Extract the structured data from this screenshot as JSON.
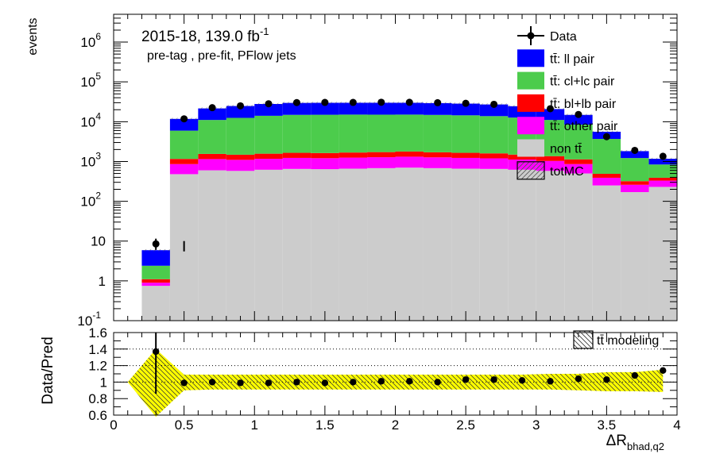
{
  "chart_data": [
    {
      "type": "bar",
      "stacked": true,
      "log_y": true,
      "title": "2015-18, 139.0 fb",
      "title_sup": "-1",
      "subtitle": "pre-tag ,  pre-fit, PFlow jets",
      "ylabel": "events",
      "xlabel": "",
      "xlim": [
        0,
        4
      ],
      "ylim": [
        0.1,
        5000000
      ],
      "y_ticks": [
        {
          "v": 0.1,
          "base": "10",
          "sup": "-1"
        },
        {
          "v": 1,
          "base": "1",
          "sup": ""
        },
        {
          "v": 10,
          "base": "10",
          "sup": ""
        },
        {
          "v": 100,
          "base": "10",
          "sup": "2"
        },
        {
          "v": 1000,
          "base": "10",
          "sup": "3"
        },
        {
          "v": 10000,
          "base": "10",
          "sup": "4"
        },
        {
          "v": 100000,
          "base": "10",
          "sup": "5"
        },
        {
          "v": 1000000,
          "base": "10",
          "sup": "6"
        }
      ],
      "bin_edges": [
        0.2,
        0.4,
        0.6,
        0.8,
        1.0,
        1.2,
        1.4,
        1.6,
        1.8,
        2.0,
        2.2,
        2.4,
        2.6,
        2.8,
        3.0,
        3.2,
        3.4,
        3.6,
        3.8,
        4.0
      ],
      "series": [
        {
          "name": "non tt̄",
          "color": "#cccccc",
          "values": [
            0.75,
            480,
            600,
            580,
            620,
            650,
            640,
            660,
            680,
            700,
            680,
            660,
            650,
            620,
            580,
            500,
            250,
            170,
            230
          ]
        },
        {
          "name": "tt̄: other pair",
          "color": "#ff00ff",
          "values": [
            0.15,
            380,
            550,
            520,
            550,
            580,
            570,
            590,
            600,
            620,
            590,
            570,
            550,
            500,
            450,
            360,
            140,
            90,
            100
          ]
        },
        {
          "name": "tt̄: bl+lb pair",
          "color": "#ff0000",
          "values": [
            0.2,
            300,
            400,
            380,
            400,
            420,
            420,
            430,
            440,
            460,
            430,
            420,
            400,
            370,
            330,
            270,
            100,
            60,
            60
          ]
        },
        {
          "name": "tt̄: cl+lc pair",
          "color": "#4ccc4c",
          "values": [
            1.3,
            4800,
            9500,
            11000,
            12500,
            13200,
            13300,
            13400,
            13300,
            13300,
            13100,
            12800,
            12200,
            11200,
            9700,
            7300,
            3200,
            900,
            450
          ]
        },
        {
          "name": "tt̄: ll pair",
          "color": "#0000ff",
          "values": [
            3.5,
            5800,
            10500,
            12300,
            13800,
            14800,
            14900,
            14800,
            14900,
            14800,
            14500,
            14000,
            13300,
            11800,
            9700,
            6400,
            1900,
            600,
            330
          ]
        }
      ],
      "data": {
        "name": "Data",
        "x": [
          0.3,
          0.5,
          0.7,
          0.9,
          1.1,
          1.3,
          1.5,
          1.7,
          1.9,
          2.1,
          2.3,
          2.5,
          2.7,
          2.9,
          3.1,
          3.3,
          3.5,
          3.7,
          3.9
        ],
        "y": [
          8.5,
          11800,
          22500,
          25000,
          28200,
          30200,
          30500,
          30500,
          30800,
          30700,
          30000,
          29000,
          27300,
          25100,
          21200,
          15200,
          4200,
          1900,
          1350
        ],
        "err_low": [
          6.0,
          5.5
        ],
        "err_high": [
          11.5,
          10
        ]
      },
      "legend": [
        "Data",
        "tt̄: ll pair",
        "tt̄: cl+lc pair",
        "tt̄: bl+lb pair",
        "tt̄: other pair",
        "non tt̄",
        "totMC"
      ],
      "legend_placement": "top-right"
    },
    {
      "type": "scatter",
      "ylabel": "Data/Pred",
      "xlabel": "ΔR",
      "xlabel_sub": "bhad,q2",
      "xlim": [
        0,
        4
      ],
      "ylim": [
        0.6,
        1.6
      ],
      "x_ticks": [
        "0",
        "0.5",
        "1",
        "1.5",
        "2",
        "2.5",
        "3",
        "3.5",
        "4"
      ],
      "y_ticks": [
        "0.6",
        "0.8",
        "1",
        "1.2",
        "1.4",
        "1.6"
      ],
      "grid_y": [
        1.2,
        1.4
      ],
      "x": [
        0.3,
        0.5,
        0.7,
        0.9,
        1.1,
        1.3,
        1.5,
        1.7,
        1.9,
        2.1,
        2.3,
        2.5,
        2.7,
        2.9,
        3.1,
        3.3,
        3.5,
        3.7,
        3.9
      ],
      "y": [
        1.37,
        0.99,
        1.0,
        0.99,
        0.99,
        1.0,
        0.99,
        1.0,
        1.01,
        1.01,
        1.0,
        1.03,
        1.03,
        1.02,
        1.01,
        1.04,
        1.03,
        1.08,
        1.14
      ],
      "band": {
        "name": "tt̄ modeling",
        "edges": [
          0.1,
          0.3,
          0.5,
          0.7,
          0.9,
          1.1,
          1.3,
          1.5,
          1.7,
          1.9,
          2.1,
          2.3,
          2.5,
          2.7,
          2.9,
          3.1,
          3.3,
          3.5,
          3.7,
          3.9
        ],
        "low": [
          1.0,
          0.58,
          0.9,
          0.91,
          0.91,
          0.91,
          0.91,
          0.91,
          0.91,
          0.91,
          0.91,
          0.91,
          0.91,
          0.91,
          0.91,
          0.91,
          0.9,
          0.89,
          0.89,
          0.88
        ],
        "high": [
          1.0,
          1.4,
          1.09,
          1.09,
          1.09,
          1.09,
          1.09,
          1.09,
          1.09,
          1.09,
          1.09,
          1.09,
          1.09,
          1.09,
          1.09,
          1.1,
          1.1,
          1.12,
          1.12,
          1.15
        ]
      },
      "legend_placement": "top-right"
    }
  ]
}
